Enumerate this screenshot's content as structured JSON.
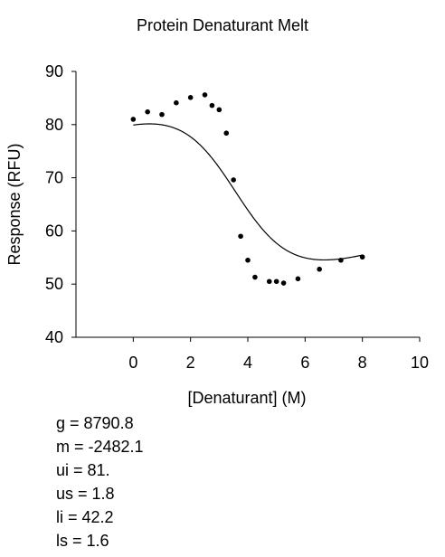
{
  "chart_data": {
    "type": "scatter",
    "title": "Protein Denaturant Melt",
    "xlabel": "[Denaturant] (M)",
    "ylabel": "Response (RFU)",
    "xlim": [
      -2,
      10
    ],
    "ylim": [
      40,
      90
    ],
    "xticks": [
      0,
      2,
      4,
      6,
      8,
      10
    ],
    "yticks": [
      40,
      50,
      60,
      70,
      80,
      90
    ],
    "grid": false,
    "legend": "none",
    "points": [
      {
        "x": 0.0,
        "y": 81.0
      },
      {
        "x": 0.5,
        "y": 82.4
      },
      {
        "x": 1.0,
        "y": 81.9
      },
      {
        "x": 1.5,
        "y": 84.1
      },
      {
        "x": 2.0,
        "y": 85.1
      },
      {
        "x": 2.5,
        "y": 85.6
      },
      {
        "x": 2.75,
        "y": 83.6
      },
      {
        "x": 3.0,
        "y": 82.8
      },
      {
        "x": 3.25,
        "y": 78.4
      },
      {
        "x": 3.5,
        "y": 69.6
      },
      {
        "x": 3.75,
        "y": 59.0
      },
      {
        "x": 4.0,
        "y": 54.5
      },
      {
        "x": 4.25,
        "y": 51.3
      },
      {
        "x": 4.75,
        "y": 50.5
      },
      {
        "x": 5.0,
        "y": 50.5
      },
      {
        "x": 5.25,
        "y": 50.2
      },
      {
        "x": 5.75,
        "y": 51.0
      },
      {
        "x": 6.5,
        "y": 52.8
      },
      {
        "x": 7.25,
        "y": 54.5
      },
      {
        "x": 8.0,
        "y": 55.1
      }
    ],
    "fit": {
      "type": "line",
      "range": [
        0,
        8
      ],
      "model": "two-state linear extrapolation",
      "params": {
        "g": 8790.8,
        "m": -2482.1,
        "ui": 81.0,
        "us": 1.8,
        "li": 42.2,
        "ls": 1.6
      }
    },
    "marker_color": "#000000",
    "line_color": "#000000"
  },
  "params_text": [
    "g = 8790.8",
    "m = -2482.1",
    "ui = 81.",
    "us = 1.8",
    "li = 42.2",
    "ls = 1.6"
  ]
}
